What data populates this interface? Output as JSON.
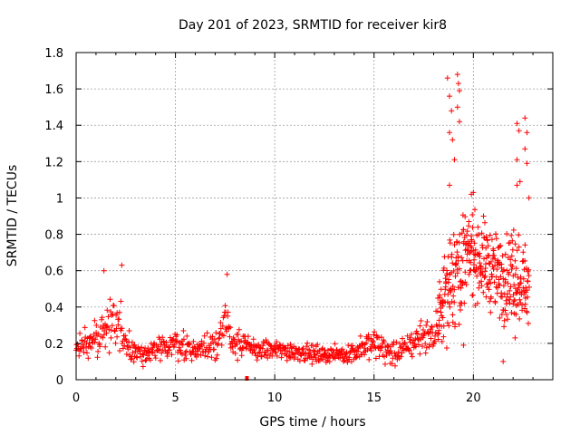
{
  "chart_data": {
    "type": "scatter",
    "title": "Day 201 of 2023, SRMTID for receiver kir8",
    "xlabel": "GPS time / hours",
    "ylabel": "SRMTID / TECUs",
    "xlim": [
      0,
      24
    ],
    "ylim": [
      0,
      1.8
    ],
    "grid": true,
    "marker": "+",
    "color": "#ff0000",
    "xticks": [
      0,
      5,
      10,
      15,
      20
    ],
    "xtick_labels": [
      "0",
      "5",
      "10",
      "15",
      "20"
    ],
    "yticks": [
      0,
      0.2,
      0.4,
      0.6,
      0.8,
      1.0,
      1.2,
      1.4,
      1.6,
      1.8
    ],
    "ytick_labels": [
      "0",
      "0.2",
      "0.4",
      "0.6",
      "0.8",
      "1",
      "1.2",
      "1.4",
      "1.6",
      "1.8"
    ],
    "trend_profile": {
      "x": [
        0,
        0.5,
        1,
        1.5,
        2,
        2.5,
        3,
        4,
        5,
        6,
        7,
        7.5,
        8,
        9,
        10,
        11,
        12,
        13,
        14,
        15,
        16,
        17,
        17.5,
        18,
        18.5,
        19,
        19.5,
        20,
        20.5,
        21,
        21.5,
        22,
        22.5,
        22.8
      ],
      "center": [
        0.18,
        0.2,
        0.22,
        0.3,
        0.33,
        0.22,
        0.15,
        0.15,
        0.2,
        0.16,
        0.2,
        0.3,
        0.2,
        0.17,
        0.16,
        0.16,
        0.14,
        0.14,
        0.15,
        0.2,
        0.14,
        0.2,
        0.26,
        0.22,
        0.45,
        0.6,
        0.65,
        0.7,
        0.65,
        0.6,
        0.55,
        0.6,
        0.55,
        0.5
      ],
      "spread": [
        0.07,
        0.08,
        0.09,
        0.12,
        0.13,
        0.09,
        0.05,
        0.05,
        0.07,
        0.06,
        0.08,
        0.12,
        0.07,
        0.05,
        0.05,
        0.05,
        0.04,
        0.04,
        0.05,
        0.08,
        0.06,
        0.07,
        0.1,
        0.06,
        0.2,
        0.3,
        0.25,
        0.2,
        0.2,
        0.2,
        0.2,
        0.25,
        0.2,
        0.18
      ]
    },
    "sample_step_hours": 0.025,
    "highlighted_points": [
      {
        "x": 1.4,
        "y": 0.6
      },
      {
        "x": 2.3,
        "y": 0.63
      },
      {
        "x": 7.6,
        "y": 0.58
      },
      {
        "x": 18.7,
        "y": 1.66
      },
      {
        "x": 18.8,
        "y": 1.56
      },
      {
        "x": 18.9,
        "y": 1.48
      },
      {
        "x": 18.8,
        "y": 1.36
      },
      {
        "x": 18.95,
        "y": 1.32
      },
      {
        "x": 19.2,
        "y": 1.68
      },
      {
        "x": 19.25,
        "y": 1.63
      },
      {
        "x": 19.3,
        "y": 1.59
      },
      {
        "x": 19.3,
        "y": 1.42
      },
      {
        "x": 19.2,
        "y": 1.5
      },
      {
        "x": 19.05,
        "y": 1.21
      },
      {
        "x": 18.8,
        "y": 1.07
      },
      {
        "x": 22.2,
        "y": 1.41
      },
      {
        "x": 22.3,
        "y": 1.37
      },
      {
        "x": 22.6,
        "y": 1.44
      },
      {
        "x": 22.6,
        "y": 1.27
      },
      {
        "x": 22.7,
        "y": 1.36
      },
      {
        "x": 22.2,
        "y": 1.21
      },
      {
        "x": 22.7,
        "y": 1.19
      },
      {
        "x": 22.2,
        "y": 1.07
      },
      {
        "x": 22.35,
        "y": 1.09
      },
      {
        "x": 20.0,
        "y": 1.03
      },
      {
        "x": 19.9,
        "y": 1.02
      },
      {
        "x": 22.8,
        "y": 1.0
      },
      {
        "x": 22.1,
        "y": 0.23
      },
      {
        "x": 19.5,
        "y": 0.19
      },
      {
        "x": 21.5,
        "y": 0.1
      }
    ],
    "x_axis_marker": {
      "x": 8.6,
      "y": 0
    }
  }
}
